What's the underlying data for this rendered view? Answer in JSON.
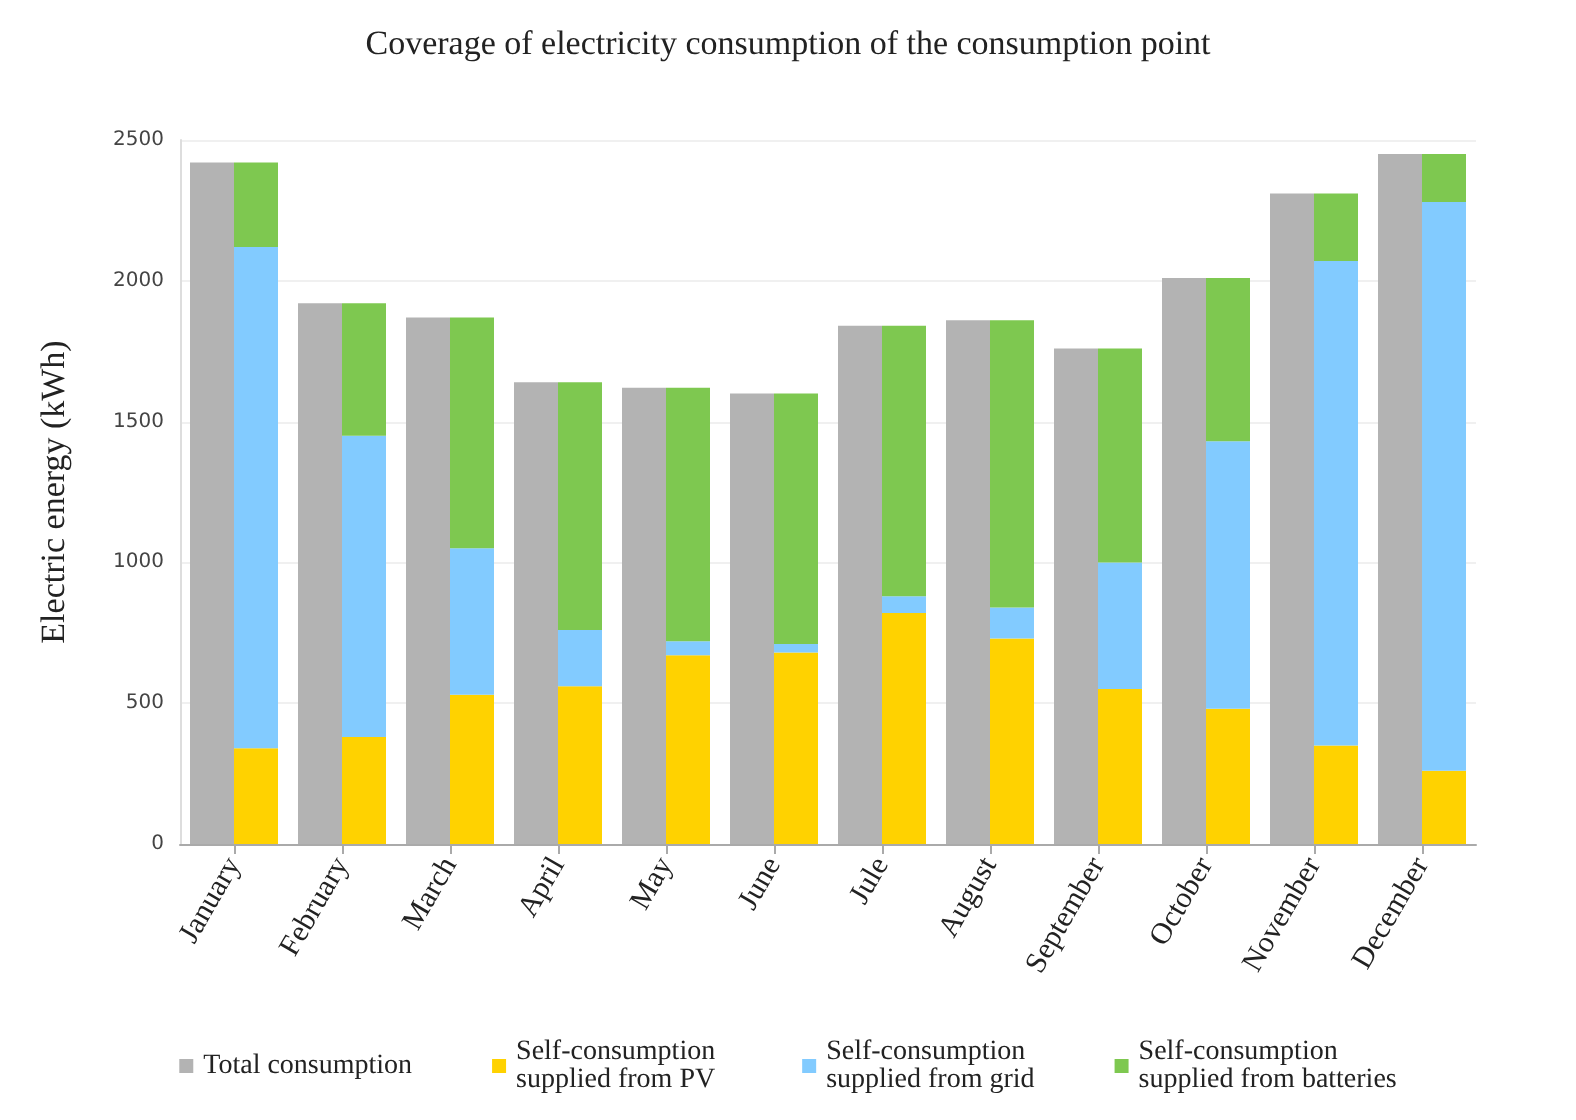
{
  "chart_data": {
    "type": "bar",
    "title": "Coverage of electricity consumption of the consumption point",
    "ylabel": "Electric energy (kWh)",
    "categories": [
      "January",
      "February",
      "March",
      "April",
      "May",
      "June",
      "Jule",
      "August",
      "September",
      "October",
      "November",
      "December"
    ],
    "series": [
      {
        "name": "Total consumption",
        "color": "#b3b3b3",
        "values": [
          2420,
          1920,
          1870,
          1640,
          1620,
          1600,
          1840,
          1860,
          1760,
          2010,
          2310,
          2450
        ]
      },
      {
        "name": "Self-consumption supplied from PV",
        "color": "#ffd200",
        "base": [
          0,
          0,
          0,
          0,
          0,
          0,
          0,
          0,
          0,
          0,
          0,
          0
        ],
        "values": [
          340,
          380,
          530,
          560,
          670,
          680,
          820,
          730,
          550,
          480,
          350,
          260
        ]
      },
      {
        "name": "Self-consumption supplied from grid",
        "color": "#82cbff",
        "base": [
          340,
          380,
          530,
          560,
          670,
          680,
          820,
          730,
          550,
          480,
          350,
          260
        ],
        "values": [
          1780,
          1070,
          520,
          200,
          50,
          30,
          60,
          110,
          450,
          950,
          1720,
          2020
        ]
      },
      {
        "name": "Self-consumption supplied from batteries",
        "color": "#7ec850",
        "base": [
          2120,
          1450,
          1050,
          760,
          720,
          710,
          880,
          840,
          1000,
          1430,
          2070,
          2280
        ],
        "values": [
          300,
          470,
          820,
          880,
          900,
          890,
          960,
          1020,
          760,
          580,
          240,
          170
        ]
      }
    ],
    "ylim": [
      0,
      2500
    ],
    "yticks": [
      0,
      500,
      1000,
      1500,
      2000,
      2500
    ],
    "grid": "y",
    "legend": "bottom"
  }
}
